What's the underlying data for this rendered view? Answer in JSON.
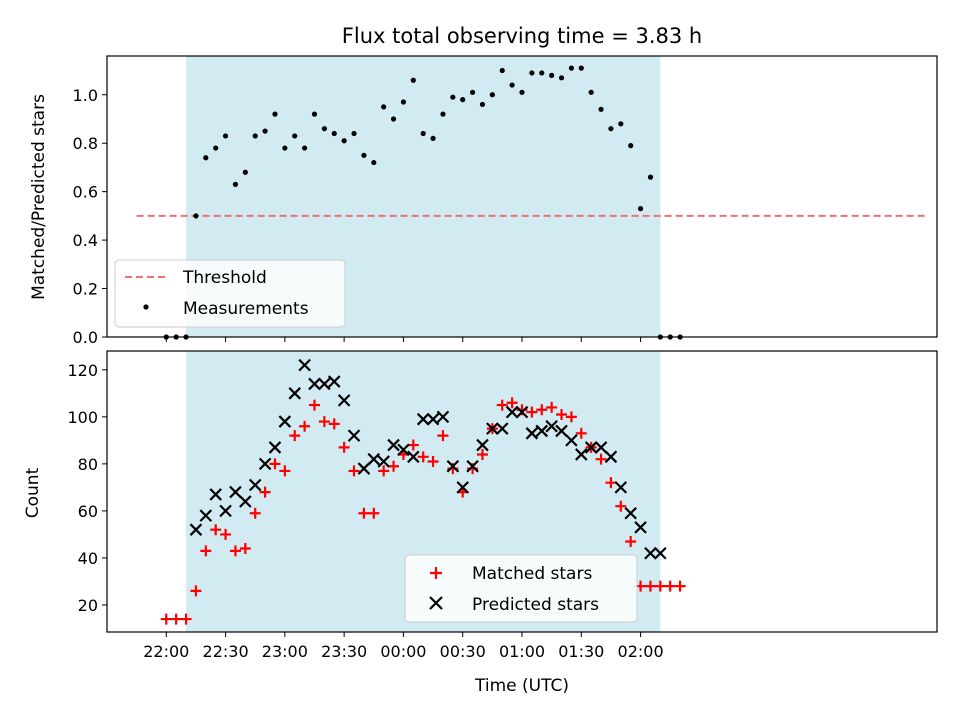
{
  "colors": {
    "shade": "#add8e6",
    "threshold": "#f07070",
    "matched": "#ff0000",
    "predicted": "#000000",
    "measurement": "#000000"
  },
  "chart_data": [
    {
      "type": "scatter",
      "title": "Flux total observing time = 3.83 h",
      "xlabel": "",
      "ylabel": "Matched/Predicted stars",
      "ylim": [
        0,
        1.16
      ],
      "yticks": [
        "0.0",
        "0.2",
        "0.4",
        "0.6",
        "0.8",
        "1.0"
      ],
      "xlim": [
        -15,
        405
      ],
      "x_unit": "minutes after 21:45 UTC",
      "shaded_x_range": [
        25,
        265
      ],
      "threshold": {
        "name": "Threshold",
        "value": 0.5,
        "x_range": [
          0,
          400
        ]
      },
      "legend": {
        "position": "lower-left",
        "entries": [
          "Threshold",
          "Measurements"
        ]
      },
      "series": [
        {
          "name": "Measurements",
          "x": [
            15,
            20,
            25,
            30,
            35,
            40,
            45,
            50,
            55,
            60,
            65,
            70,
            75,
            80,
            85,
            90,
            95,
            100,
            105,
            110,
            115,
            120,
            125,
            130,
            135,
            140,
            145,
            150,
            155,
            160,
            165,
            170,
            175,
            180,
            185,
            190,
            195,
            200,
            205,
            210,
            215,
            220,
            225,
            230,
            235,
            240,
            245,
            250,
            255,
            260,
            265,
            270,
            275
          ],
          "y": [
            0.0,
            0.0,
            0.0,
            0.5,
            0.74,
            0.78,
            0.83,
            0.63,
            0.68,
            0.83,
            0.85,
            0.92,
            0.78,
            0.83,
            0.78,
            0.92,
            0.86,
            0.84,
            0.81,
            0.84,
            0.75,
            0.72,
            0.95,
            0.9,
            0.97,
            1.06,
            0.84,
            0.82,
            0.92,
            0.99,
            0.98,
            1.01,
            0.96,
            1.0,
            1.1,
            1.04,
            1.01,
            1.09,
            1.09,
            1.08,
            1.07,
            1.11,
            1.11,
            1.01,
            0.94,
            0.86,
            0.88,
            0.79,
            0.53,
            0.66,
            0.0,
            0.0,
            0.0
          ]
        }
      ]
    },
    {
      "type": "scatter",
      "title": "",
      "xlabel": "Time (UTC)",
      "ylabel": "Count",
      "ylim": [
        8.5,
        128
      ],
      "yticks": [
        "20",
        "40",
        "60",
        "80",
        "100",
        "120"
      ],
      "xlim": [
        -15,
        405
      ],
      "x_unit": "minutes after 21:45 UTC",
      "xtick_values": [
        15,
        45,
        75,
        105,
        135,
        165,
        195,
        225,
        255
      ],
      "xtick_labels": [
        "22:00",
        "22:30",
        "23:00",
        "23:30",
        "00:00",
        "00:30",
        "01:00",
        "01:30",
        "02:00"
      ],
      "shaded_x_range": [
        25,
        265
      ],
      "legend": {
        "position": "lower-center",
        "entries": [
          "Matched stars",
          "Predicted stars"
        ]
      },
      "series": [
        {
          "name": "Matched stars",
          "marker": "+",
          "x": [
            15,
            20,
            25,
            30,
            35,
            40,
            45,
            50,
            55,
            60,
            65,
            70,
            75,
            80,
            85,
            90,
            95,
            100,
            105,
            110,
            115,
            120,
            125,
            130,
            135,
            140,
            145,
            150,
            155,
            160,
            165,
            170,
            175,
            180,
            185,
            190,
            195,
            200,
            205,
            210,
            215,
            220,
            225,
            230,
            235,
            240,
            245,
            250,
            255,
            260,
            265,
            270,
            275
          ],
          "y": [
            14,
            14,
            14,
            26,
            43,
            52,
            50,
            43,
            44,
            59,
            68,
            80,
            77,
            92,
            96,
            105,
            98,
            97,
            87,
            77,
            59,
            59,
            77,
            79,
            84,
            88,
            83,
            81,
            92,
            78,
            68,
            78,
            84,
            95,
            105,
            106,
            103,
            102,
            103,
            104,
            101,
            100,
            93,
            87,
            82,
            72,
            62,
            47,
            28,
            28,
            28,
            28,
            28
          ]
        },
        {
          "name": "Predicted stars",
          "marker": "x",
          "x": [
            30,
            35,
            40,
            45,
            50,
            55,
            60,
            65,
            70,
            75,
            80,
            85,
            90,
            95,
            100,
            105,
            110,
            115,
            120,
            125,
            130,
            135,
            140,
            145,
            150,
            155,
            160,
            165,
            170,
            175,
            180,
            185,
            190,
            195,
            200,
            205,
            210,
            215,
            220,
            225,
            230,
            235,
            240,
            245,
            250,
            255,
            260,
            265
          ],
          "y": [
            52,
            58,
            67,
            60,
            68,
            64,
            71,
            80,
            87,
            98,
            110,
            122,
            114,
            114,
            115,
            107,
            92,
            78,
            82,
            81,
            88,
            86,
            83,
            99,
            99,
            100,
            79,
            70,
            79,
            88,
            95,
            95,
            102,
            102,
            93,
            94,
            96,
            94,
            90,
            84,
            87,
            87,
            83,
            70,
            59,
            53,
            42,
            42
          ]
        }
      ]
    }
  ]
}
